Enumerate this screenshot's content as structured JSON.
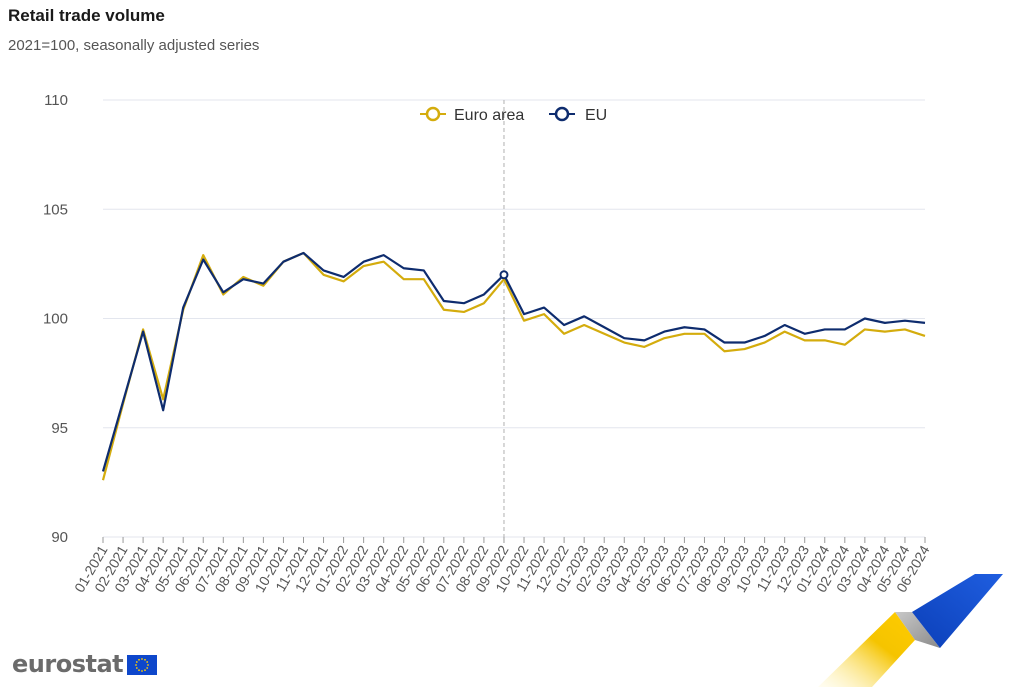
{
  "header": {
    "title": "Retail trade volume",
    "subtitle": "2021=100, seasonally adjusted series"
  },
  "brand": {
    "logo_text": "eurostat"
  },
  "colors": {
    "euro_area": "#d4ac0d",
    "eu": "#0e2c6e",
    "grid": "#e3e6ee",
    "crosshair": "#b0b0b0"
  },
  "chart_data": {
    "type": "line",
    "title": "Retail trade volume",
    "subtitle": "2021=100, seasonally adjusted series",
    "xlabel": "",
    "ylabel": "",
    "ylim": [
      90,
      110
    ],
    "yticks": [
      90,
      95,
      100,
      105,
      110
    ],
    "grid": true,
    "legend_position": "top-center",
    "highlighted_category": "09-2022",
    "categories": [
      "01-2021",
      "02-2021",
      "03-2021",
      "04-2021",
      "05-2021",
      "06-2021",
      "07-2021",
      "08-2021",
      "09-2021",
      "10-2021",
      "11-2021",
      "12-2021",
      "01-2022",
      "02-2022",
      "03-2022",
      "04-2022",
      "05-2022",
      "06-2022",
      "07-2022",
      "08-2022",
      "09-2022",
      "10-2022",
      "11-2022",
      "12-2022",
      "01-2023",
      "02-2023",
      "03-2023",
      "04-2023",
      "05-2023",
      "06-2023",
      "07-2023",
      "08-2023",
      "09-2023",
      "10-2023",
      "11-2023",
      "12-2023",
      "01-2024",
      "02-2024",
      "03-2024",
      "04-2024",
      "05-2024",
      "06-2024"
    ],
    "series": [
      {
        "name": "Euro area",
        "color": "#d4ac0d",
        "values": [
          92.6,
          96.1,
          99.5,
          96.3,
          100.4,
          102.9,
          101.1,
          101.9,
          101.5,
          102.6,
          103.0,
          102.0,
          101.7,
          102.4,
          102.6,
          101.8,
          101.8,
          100.4,
          100.3,
          100.7,
          101.8,
          99.9,
          100.2,
          99.3,
          99.7,
          99.3,
          98.9,
          98.7,
          99.1,
          99.3,
          99.3,
          98.5,
          98.6,
          98.9,
          99.4,
          99.0,
          99.0,
          98.8,
          99.5,
          99.4,
          99.5,
          99.2
        ]
      },
      {
        "name": "EU",
        "color": "#0e2c6e",
        "values": [
          93.0,
          96.2,
          99.4,
          95.8,
          100.5,
          102.7,
          101.2,
          101.8,
          101.6,
          102.6,
          103.0,
          102.2,
          101.9,
          102.6,
          102.9,
          102.3,
          102.2,
          100.8,
          100.7,
          101.1,
          102.0,
          100.2,
          100.5,
          99.7,
          100.1,
          99.6,
          99.1,
          99.0,
          99.4,
          99.6,
          99.5,
          98.9,
          98.9,
          99.2,
          99.7,
          99.3,
          99.5,
          99.5,
          100.0,
          99.8,
          99.9,
          99.8
        ]
      }
    ]
  }
}
